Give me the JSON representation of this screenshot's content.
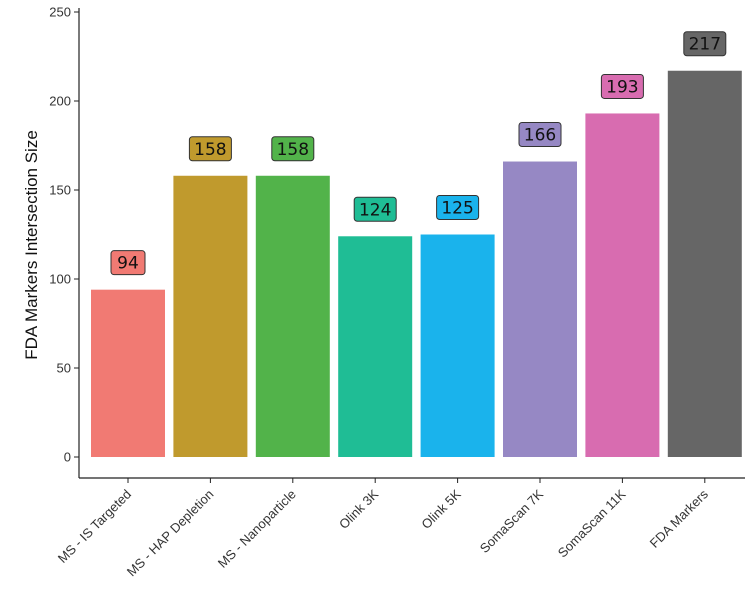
{
  "chart_data": {
    "type": "bar",
    "ylabel": "FDA Markers Intersection Size",
    "xlabel": "",
    "ylim": [
      0,
      250
    ],
    "yticks": [
      0,
      50,
      100,
      150,
      200,
      250
    ],
    "grid": false,
    "legend": "none",
    "categories": [
      "MS - IS Targeted",
      "MS - HAP Depletion",
      "MS - Nanoparticle",
      "Olink 3K",
      "Olink 5K",
      "SomaScan 7K",
      "SomaScan 11K",
      "FDA Markers"
    ],
    "values": [
      94,
      158,
      158,
      124,
      125,
      166,
      193,
      217
    ],
    "colors": [
      "#f17a73",
      "#c09a2d",
      "#52b34a",
      "#1fbd95",
      "#1ab3ec",
      "#9688c4",
      "#d86cb0",
      "#666666"
    ]
  }
}
